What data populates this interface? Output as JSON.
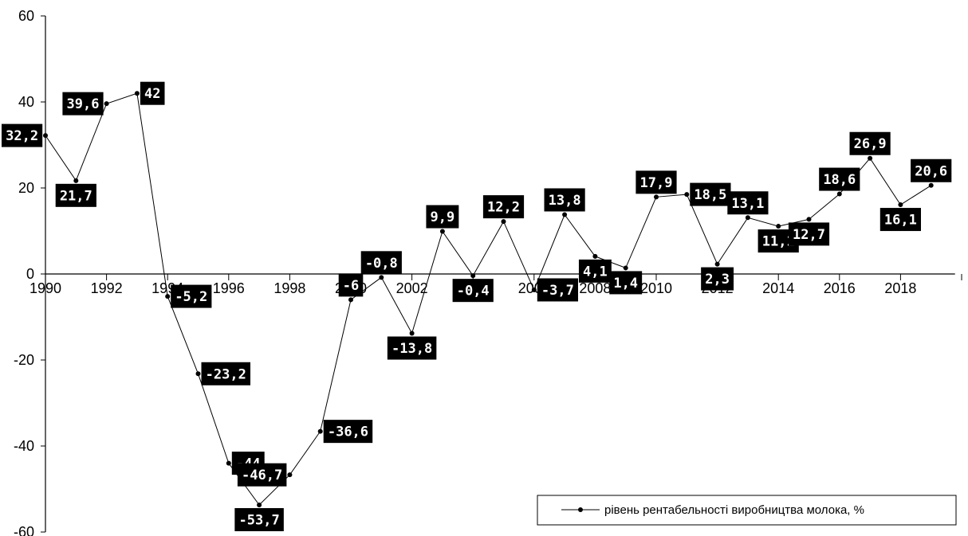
{
  "chart_data": {
    "type": "line",
    "title": "",
    "xlabel": "",
    "ylabel": "",
    "x": [
      1990,
      1991,
      1992,
      1993,
      1994,
      1995,
      1996,
      1997,
      1998,
      1999,
      2000,
      2001,
      2002,
      2003,
      2004,
      2005,
      2006,
      2007,
      2008,
      2009,
      2010,
      2011,
      2012,
      2013,
      2014,
      2015,
      2016,
      2017,
      2018,
      2019
    ],
    "x_tick_labels": [
      "1990",
      "1992",
      "1994",
      "1996",
      "1998",
      "2000",
      "2002",
      "2004",
      "2006",
      "2008",
      "2010",
      "2012",
      "2014",
      "2016",
      "2018"
    ],
    "y_tick_labels": [
      "60",
      "40",
      "20",
      "0",
      "-20",
      "-40",
      "-60"
    ],
    "ylim": [
      -60,
      60
    ],
    "grid": false,
    "legend_position": "bottom-right",
    "series": [
      {
        "name": "рівень рентабельності виробництва молока, %",
        "values": [
          32.2,
          21.7,
          39.6,
          42,
          -5.2,
          -23.2,
          -44,
          -53.7,
          -46.7,
          -36.6,
          -6,
          -0.8,
          -13.8,
          9.9,
          -0.4,
          12.2,
          -3.7,
          13.8,
          4.1,
          1.4,
          17.9,
          18.5,
          2.3,
          13.1,
          11.1,
          12.7,
          18.6,
          26.9,
          16.1,
          20.6
        ],
        "data_labels": [
          "32,2",
          "21,7",
          "39,6",
          "42",
          "-5,2",
          "-23,2",
          "-44",
          "-53,7",
          "-46,7",
          "-36,6",
          "-6",
          "-0,8",
          "-13,8",
          "9,9",
          "-0,4",
          "12,2",
          "-3,7",
          "13,8",
          "4,1",
          "1,4",
          "17,9",
          "18,5",
          "2,3",
          "13,1",
          "11,1",
          "12,7",
          "18,6",
          "26,9",
          "16,1",
          "20,6"
        ]
      }
    ]
  }
}
